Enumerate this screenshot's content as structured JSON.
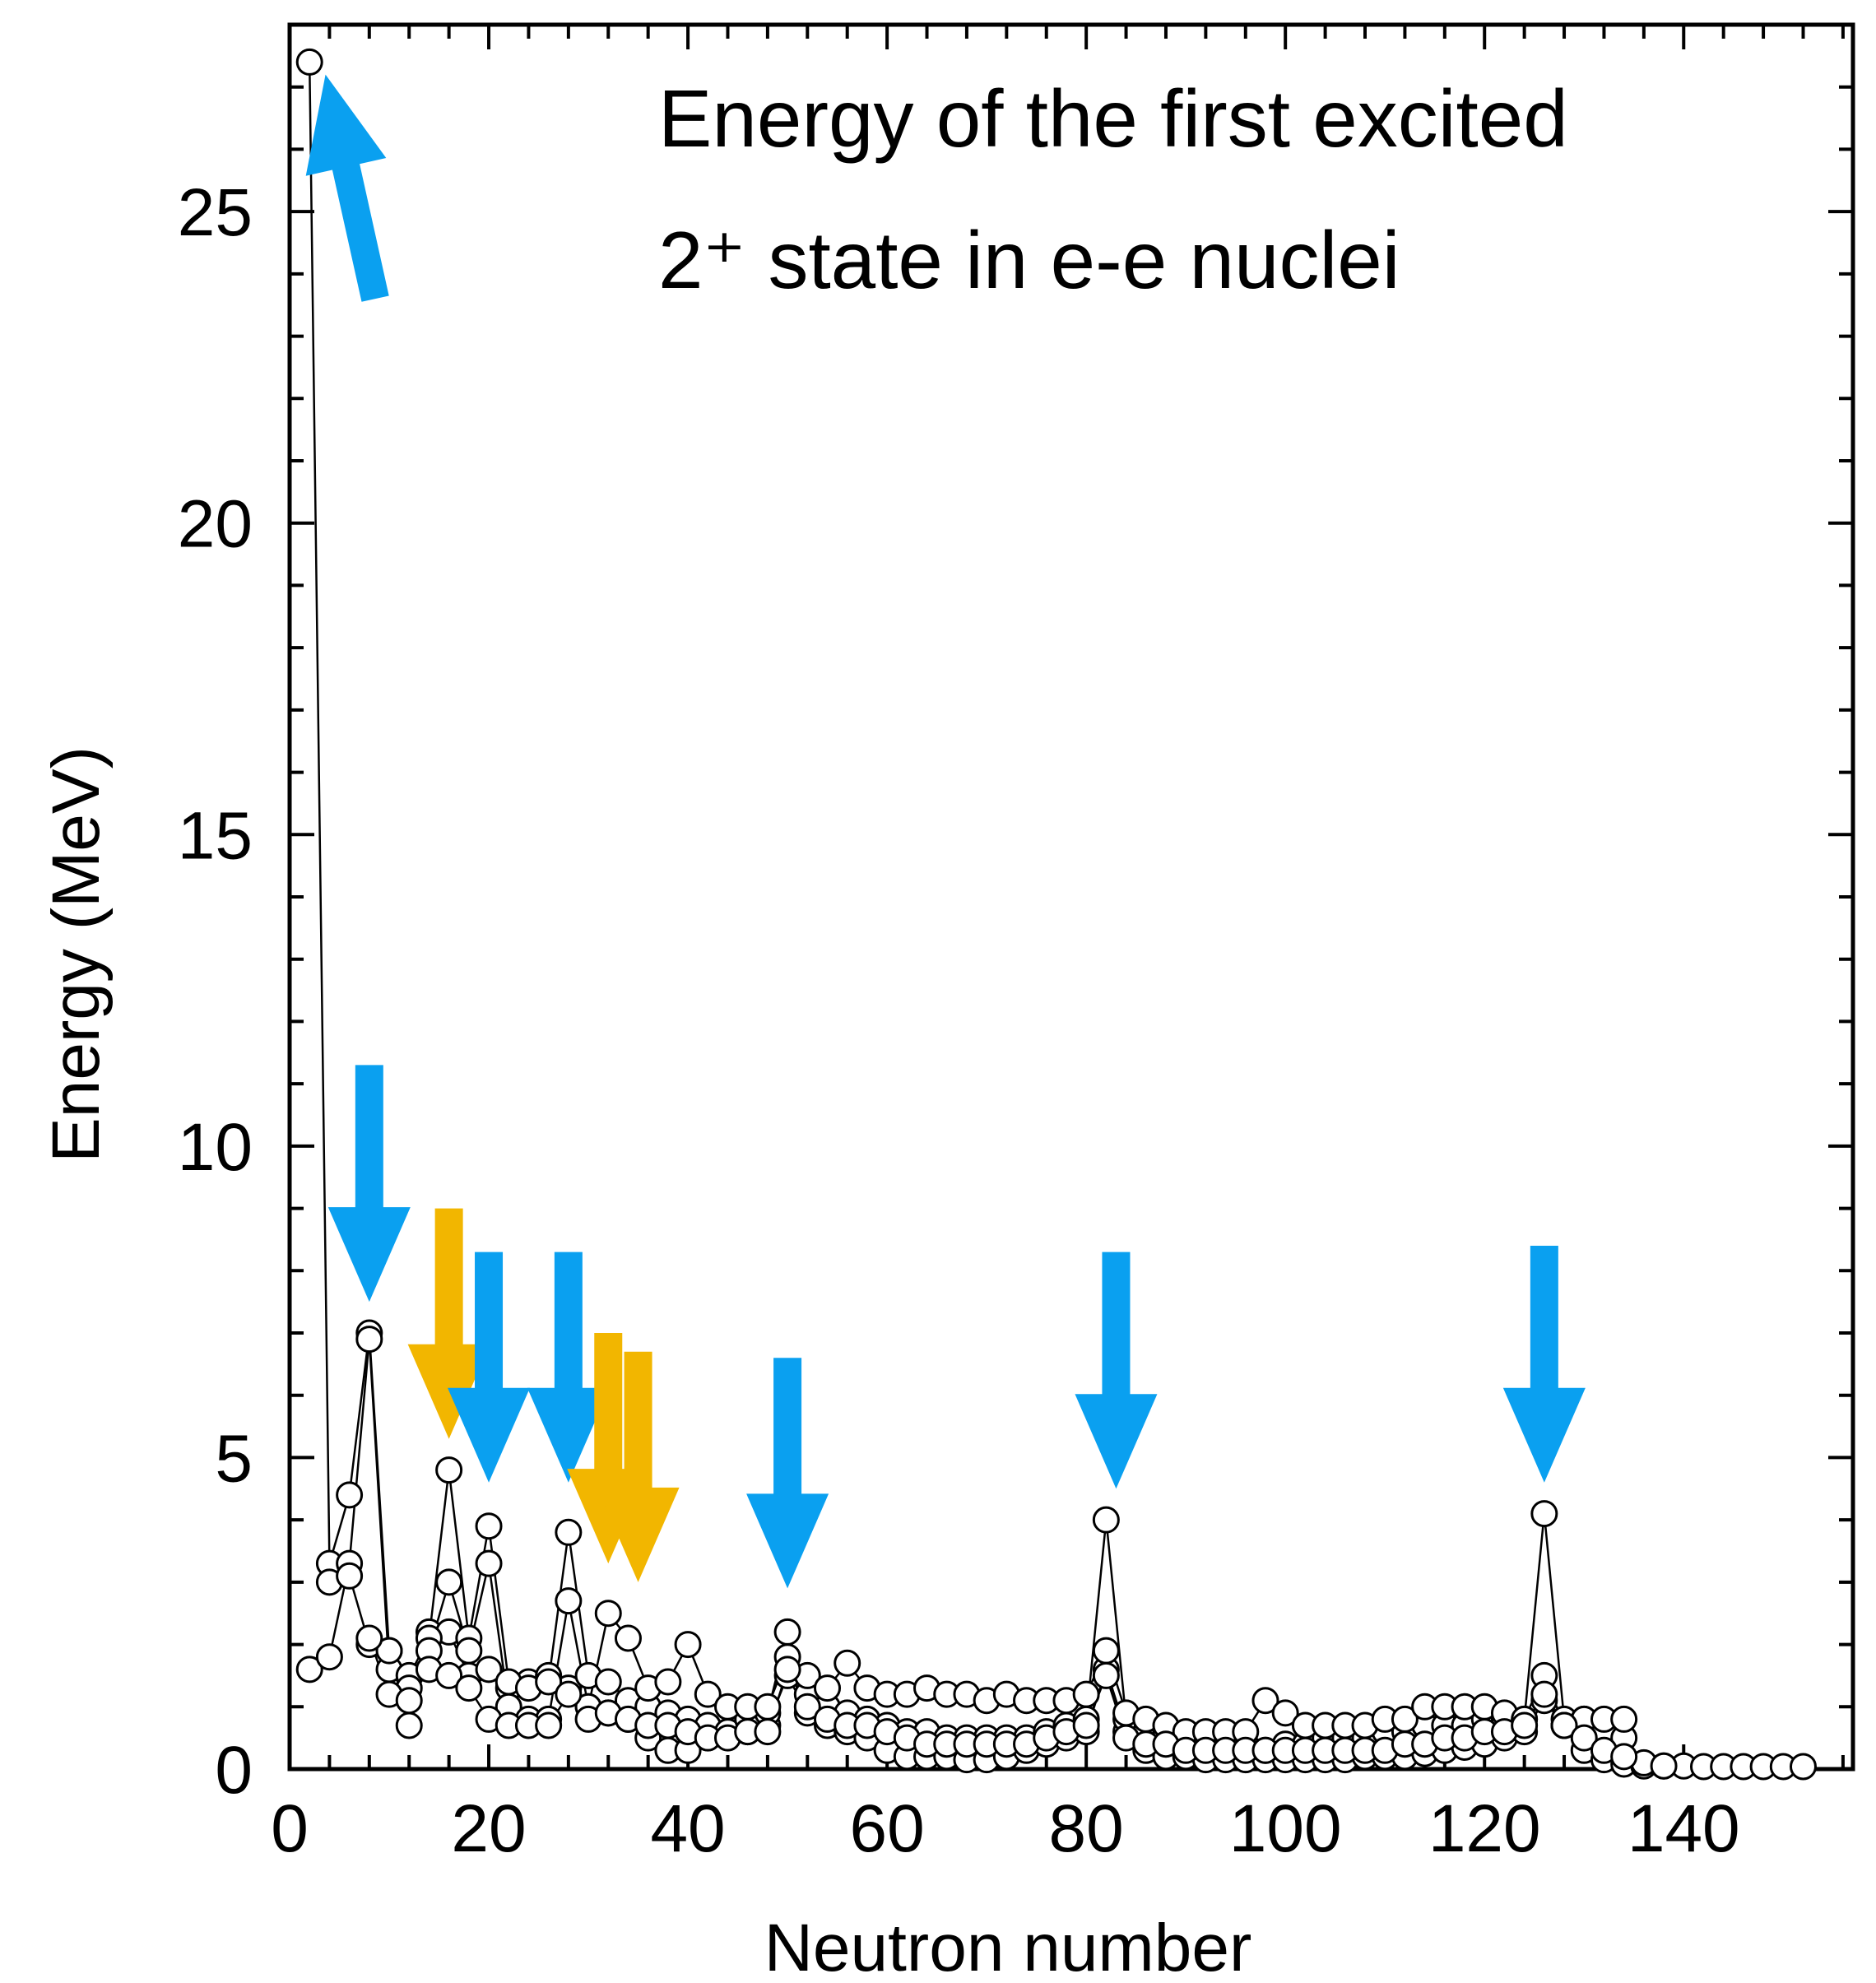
{
  "chart_data": {
    "type": "scatter",
    "title_lines": [
      "Energy of the first excited",
      "2⁺ state in e-e nuclei"
    ],
    "xlabel": "Neutron number",
    "ylabel": "Energy (MeV)",
    "xlim": [
      0,
      157
    ],
    "ylim": [
      0,
      28
    ],
    "x_ticks": [
      0,
      20,
      40,
      60,
      80,
      100,
      120,
      140
    ],
    "x_tick_labels": [
      "0",
      "20",
      "40",
      "60",
      "80",
      "100",
      "120",
      "140"
    ],
    "y_ticks": [
      0,
      5,
      10,
      15,
      20,
      25
    ],
    "y_tick_labels": [
      "0",
      "5",
      "10",
      "15",
      "20",
      "25"
    ],
    "marker": "open-circle",
    "colors": {
      "magic_arrow": "#0aa0f0",
      "submagic_arrow": "#f2b600",
      "line": "#000000"
    },
    "series": [
      {
        "values": [
          [
            2,
            27.4
          ],
          [
            4,
            3.3
          ],
          [
            6,
            4.4
          ],
          [
            8,
            7.0
          ],
          [
            10,
            1.9
          ],
          [
            12,
            0.7
          ],
          [
            14,
            2.2
          ],
          [
            16,
            2.2
          ],
          [
            18,
            1.5
          ],
          [
            20,
            1.6
          ],
          [
            22,
            1.3
          ],
          [
            24,
            1.4
          ],
          [
            26,
            1.5
          ],
          [
            28,
            1.3
          ],
          [
            30,
            1.0
          ],
          [
            32,
            0.9
          ],
          [
            34,
            0.8
          ],
          [
            36,
            0.5
          ],
          [
            38,
            0.3
          ],
          [
            40,
            0.3
          ],
          [
            42,
            0.5
          ],
          [
            44,
            0.6
          ],
          [
            46,
            0.6
          ],
          [
            48,
            0.7
          ],
          [
            50,
            1.5
          ],
          [
            52,
            0.9
          ],
          [
            54,
            0.7
          ],
          [
            56,
            0.6
          ],
          [
            58,
            0.5
          ],
          [
            60,
            0.3
          ],
          [
            62,
            0.2
          ],
          [
            64,
            0.2
          ],
          [
            66,
            0.2
          ],
          [
            68,
            0.15
          ],
          [
            70,
            0.15
          ],
          [
            72,
            0.2
          ],
          [
            74,
            0.3
          ],
          [
            76,
            0.4
          ],
          [
            78,
            0.5
          ],
          [
            80,
            0.6
          ],
          [
            82,
            1.6
          ],
          [
            84,
            0.6
          ],
          [
            86,
            0.3
          ],
          [
            88,
            0.2
          ],
          [
            90,
            0.2
          ],
          [
            92,
            0.15
          ],
          [
            94,
            0.15
          ],
          [
            96,
            0.15
          ],
          [
            98,
            0.15
          ],
          [
            100,
            0.15
          ],
          [
            102,
            0.15
          ],
          [
            104,
            0.15
          ],
          [
            106,
            0.15
          ],
          [
            108,
            0.2
          ],
          [
            110,
            0.2
          ],
          [
            112,
            0.2
          ],
          [
            114,
            0.25
          ],
          [
            116,
            0.3
          ],
          [
            118,
            0.35
          ],
          [
            120,
            0.4
          ],
          [
            122,
            0.5
          ],
          [
            124,
            0.6
          ],
          [
            126,
            1.1
          ],
          [
            128,
            0.7
          ],
          [
            130,
            0.3
          ],
          [
            132,
            0.15
          ],
          [
            134,
            0.08
          ],
          [
            136,
            0.05
          ],
          [
            138,
            0.05
          ],
          [
            140,
            0.05
          ],
          [
            142,
            0.04
          ],
          [
            144,
            0.04
          ],
          [
            146,
            0.04
          ],
          [
            148,
            0.04
          ],
          [
            150,
            0.04
          ],
          [
            152,
            0.04
          ]
        ]
      },
      {
        "values": [
          [
            2,
            1.6
          ],
          [
            4,
            1.8
          ],
          [
            6,
            3.3
          ],
          [
            8,
            6.9
          ],
          [
            10,
            1.6
          ],
          [
            12,
            1.5
          ],
          [
            14,
            2.1
          ],
          [
            16,
            4.8
          ],
          [
            18,
            2.1
          ],
          [
            20,
            3.9
          ],
          [
            22,
            1.4
          ],
          [
            24,
            1.3
          ],
          [
            26,
            1.4
          ],
          [
            28,
            3.8
          ],
          [
            30,
            1.5
          ],
          [
            32,
            1.4
          ],
          [
            34,
            1.1
          ],
          [
            36,
            1.0
          ],
          [
            38,
            0.9
          ],
          [
            40,
            0.8
          ],
          [
            42,
            0.7
          ],
          [
            44,
            0.6
          ],
          [
            46,
            0.8
          ],
          [
            48,
            0.9
          ],
          [
            50,
            2.2
          ],
          [
            52,
            1.2
          ],
          [
            54,
            1.0
          ],
          [
            56,
            0.9
          ],
          [
            58,
            0.8
          ],
          [
            60,
            0.7
          ],
          [
            62,
            0.6
          ],
          [
            64,
            0.6
          ],
          [
            66,
            0.5
          ],
          [
            68,
            0.5
          ],
          [
            70,
            0.5
          ],
          [
            72,
            0.5
          ],
          [
            74,
            0.5
          ],
          [
            76,
            0.6
          ],
          [
            78,
            0.7
          ],
          [
            80,
            0.8
          ],
          [
            82,
            4.0
          ],
          [
            84,
            0.8
          ],
          [
            86,
            0.6
          ],
          [
            88,
            0.6
          ],
          [
            90,
            0.5
          ],
          [
            92,
            0.5
          ],
          [
            94,
            0.4
          ],
          [
            96,
            0.4
          ],
          [
            98,
            0.3
          ],
          [
            100,
            0.4
          ],
          [
            102,
            0.4
          ],
          [
            104,
            0.5
          ],
          [
            106,
            0.5
          ],
          [
            108,
            0.5
          ],
          [
            110,
            0.6
          ],
          [
            112,
            0.6
          ],
          [
            114,
            0.7
          ],
          [
            116,
            0.7
          ],
          [
            118,
            0.7
          ],
          [
            120,
            0.8
          ],
          [
            122,
            0.8
          ],
          [
            124,
            0.8
          ],
          [
            126,
            4.1
          ],
          [
            128,
            0.8
          ],
          [
            130,
            0.8
          ],
          [
            132,
            0.6
          ],
          [
            134,
            0.5
          ],
          [
            136,
            0.1
          ],
          [
            138,
            0.05
          ]
        ]
      },
      {
        "values": [
          [
            4,
            3.0
          ],
          [
            6,
            3.1
          ],
          [
            8,
            2.0
          ],
          [
            10,
            1.9
          ],
          [
            12,
            1.3
          ],
          [
            14,
            1.9
          ],
          [
            16,
            3.0
          ],
          [
            18,
            1.9
          ],
          [
            20,
            3.3
          ],
          [
            22,
            1.0
          ],
          [
            24,
            0.8
          ],
          [
            26,
            0.8
          ],
          [
            28,
            2.7
          ],
          [
            30,
            1.0
          ],
          [
            32,
            2.5
          ],
          [
            34,
            2.1
          ],
          [
            36,
            1.3
          ],
          [
            38,
            1.4
          ],
          [
            40,
            2.0
          ],
          [
            42,
            1.2
          ],
          [
            44,
            1.0
          ],
          [
            46,
            1.0
          ],
          [
            48,
            1.0
          ],
          [
            50,
            1.8
          ],
          [
            52,
            1.5
          ],
          [
            54,
            1.3
          ],
          [
            56,
            1.7
          ],
          [
            58,
            1.3
          ],
          [
            60,
            1.2
          ],
          [
            62,
            1.2
          ],
          [
            64,
            1.3
          ],
          [
            66,
            1.2
          ],
          [
            68,
            1.2
          ],
          [
            70,
            1.1
          ],
          [
            72,
            1.2
          ],
          [
            74,
            1.1
          ],
          [
            76,
            1.1
          ],
          [
            78,
            1.1
          ],
          [
            80,
            1.2
          ],
          [
            82,
            1.9
          ],
          [
            84,
            0.9
          ],
          [
            86,
            0.8
          ],
          [
            88,
            0.7
          ],
          [
            90,
            0.6
          ],
          [
            92,
            0.6
          ],
          [
            94,
            0.6
          ],
          [
            96,
            0.6
          ],
          [
            98,
            1.1
          ],
          [
            100,
            0.9
          ],
          [
            102,
            0.7
          ],
          [
            104,
            0.7
          ],
          [
            106,
            0.7
          ],
          [
            108,
            0.7
          ],
          [
            110,
            0.8
          ],
          [
            112,
            0.8
          ],
          [
            114,
            1.0
          ],
          [
            116,
            1.0
          ],
          [
            118,
            1.0
          ],
          [
            120,
            1.0
          ],
          [
            122,
            0.9
          ],
          [
            124,
            0.8
          ],
          [
            126,
            1.5
          ],
          [
            128,
            0.7
          ],
          [
            130,
            0.8
          ],
          [
            132,
            0.8
          ],
          [
            134,
            0.8
          ]
        ]
      },
      {
        "values": [
          [
            8,
            2.1
          ],
          [
            10,
            1.2
          ],
          [
            12,
            1.1
          ],
          [
            14,
            1.6
          ],
          [
            16,
            1.5
          ],
          [
            18,
            1.3
          ],
          [
            20,
            0.8
          ],
          [
            22,
            0.7
          ],
          [
            24,
            0.7
          ],
          [
            26,
            0.7
          ],
          [
            28,
            1.2
          ],
          [
            30,
            0.8
          ],
          [
            32,
            0.9
          ],
          [
            34,
            0.8
          ],
          [
            36,
            0.7
          ],
          [
            38,
            0.7
          ],
          [
            40,
            0.6
          ],
          [
            42,
            0.5
          ],
          [
            44,
            0.5
          ],
          [
            46,
            0.6
          ],
          [
            48,
            0.6
          ],
          [
            50,
            1.6
          ],
          [
            52,
            1.0
          ],
          [
            54,
            0.8
          ],
          [
            56,
            0.7
          ],
          [
            58,
            0.7
          ],
          [
            60,
            0.6
          ],
          [
            62,
            0.5
          ],
          [
            64,
            0.4
          ],
          [
            66,
            0.4
          ],
          [
            68,
            0.4
          ],
          [
            70,
            0.4
          ],
          [
            72,
            0.4
          ],
          [
            74,
            0.4
          ],
          [
            76,
            0.5
          ],
          [
            78,
            0.6
          ],
          [
            80,
            0.7
          ],
          [
            82,
            1.5
          ],
          [
            84,
            0.5
          ],
          [
            86,
            0.4
          ],
          [
            88,
            0.4
          ],
          [
            90,
            0.3
          ],
          [
            92,
            0.3
          ],
          [
            94,
            0.3
          ],
          [
            96,
            0.3
          ],
          [
            98,
            0.3
          ],
          [
            100,
            0.3
          ],
          [
            102,
            0.3
          ],
          [
            104,
            0.3
          ],
          [
            106,
            0.3
          ],
          [
            108,
            0.3
          ],
          [
            110,
            0.3
          ],
          [
            112,
            0.4
          ],
          [
            114,
            0.4
          ],
          [
            116,
            0.5
          ],
          [
            118,
            0.5
          ],
          [
            120,
            0.6
          ],
          [
            122,
            0.6
          ],
          [
            124,
            0.7
          ],
          [
            126,
            1.2
          ],
          [
            128,
            0.7
          ],
          [
            130,
            0.5
          ],
          [
            132,
            0.3
          ],
          [
            134,
            0.2
          ]
        ]
      }
    ],
    "arrows": [
      {
        "kind": "magic",
        "direction": "up",
        "x_tail": 8.6,
        "y_tail": 23.6,
        "x_head": 3.6,
        "y_head": 27.2
      },
      {
        "kind": "magic",
        "direction": "down",
        "x": 8,
        "y_top": 11.3,
        "y_tip": 7.5
      },
      {
        "kind": "submagic",
        "direction": "down",
        "x": 16,
        "y_top": 9.0,
        "y_tip": 5.3
      },
      {
        "kind": "magic",
        "direction": "down",
        "x": 20,
        "y_top": 8.3,
        "y_tip": 4.6
      },
      {
        "kind": "magic",
        "direction": "down",
        "x": 28,
        "y_top": 8.3,
        "y_tip": 4.6
      },
      {
        "kind": "submagic",
        "direction": "down",
        "x": 32,
        "y_top": 7.0,
        "y_tip": 3.3
      },
      {
        "kind": "submagic",
        "direction": "down",
        "x": 35,
        "y_top": 6.7,
        "y_tip": 3.0
      },
      {
        "kind": "magic",
        "direction": "down",
        "x": 50,
        "y_top": 6.6,
        "y_tip": 2.9
      },
      {
        "kind": "magic",
        "direction": "down",
        "x": 83,
        "y_top": 8.3,
        "y_tip": 4.5
      },
      {
        "kind": "magic",
        "direction": "down",
        "x": 126,
        "y_top": 8.4,
        "y_tip": 4.6
      }
    ]
  }
}
